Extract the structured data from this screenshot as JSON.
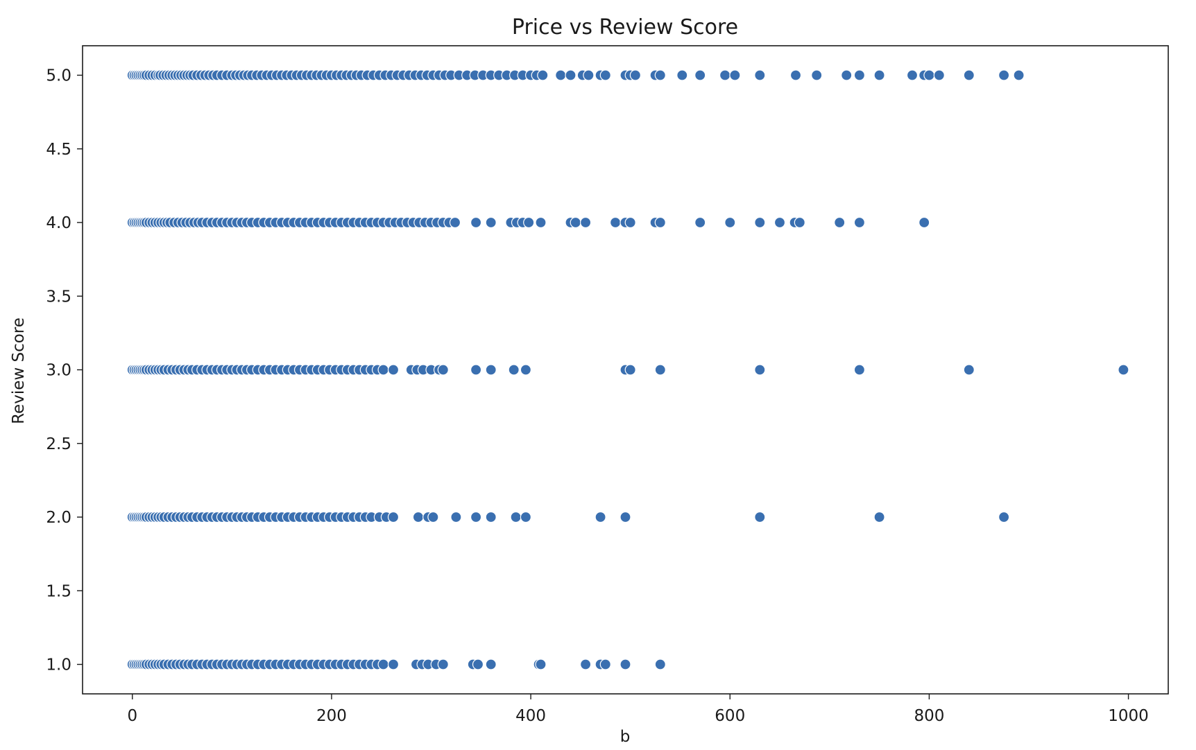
{
  "chart_data": {
    "type": "scatter",
    "title": "Price vs Review Score",
    "xlabel": "b",
    "ylabel": "Review Score",
    "xlim": [
      -50,
      1040
    ],
    "ylim": [
      0.8,
      5.2
    ],
    "xticks": [
      0,
      200,
      400,
      600,
      800,
      1000
    ],
    "yticks": [
      1.0,
      1.5,
      2.0,
      2.5,
      3.0,
      3.5,
      4.0,
      4.5,
      5.0
    ],
    "grid": false,
    "legend": "none",
    "marker_color": "#3a6fb0",
    "marker_edge_color": "#ffffff",
    "series": [
      {
        "y": 5.0,
        "x": [
          0,
          2,
          4,
          6,
          8,
          10,
          12,
          14,
          17,
          20,
          23,
          26,
          28,
          31,
          34,
          37,
          40,
          43,
          46,
          49,
          52,
          55,
          58,
          61,
          65,
          69,
          73,
          77,
          81,
          85,
          90,
          95,
          100,
          104,
          108,
          112,
          116,
          120,
          125,
          130,
          135,
          140,
          145,
          150,
          155,
          160,
          165,
          170,
          175,
          180,
          185,
          190,
          195,
          200,
          205,
          210,
          215,
          220,
          225,
          230,
          236,
          242,
          248,
          254,
          260,
          266,
          272,
          278,
          284,
          290,
          296,
          302,
          308,
          314,
          320,
          328,
          336,
          344,
          352,
          360,
          368,
          376,
          384,
          392,
          400,
          406,
          412,
          430,
          440,
          452,
          458,
          470,
          475,
          495,
          500,
          505,
          525,
          530,
          552,
          570,
          595,
          605,
          630,
          666,
          687,
          717,
          730,
          750,
          783,
          795,
          800,
          810,
          840,
          875,
          890
        ]
      },
      {
        "y": 4.0,
        "x": [
          0,
          2,
          4,
          6,
          8,
          10,
          12,
          14,
          17,
          20,
          23,
          26,
          29,
          32,
          35,
          38,
          42,
          46,
          50,
          54,
          58,
          62,
          66,
          70,
          75,
          80,
          85,
          90,
          95,
          100,
          105,
          110,
          115,
          120,
          126,
          132,
          138,
          144,
          150,
          156,
          162,
          168,
          174,
          180,
          186,
          192,
          198,
          204,
          210,
          216,
          222,
          228,
          234,
          240,
          246,
          252,
          258,
          264,
          270,
          276,
          282,
          288,
          294,
          300,
          306,
          312,
          318,
          324,
          345,
          360,
          380,
          386,
          392,
          398,
          410,
          440,
          445,
          455,
          485,
          495,
          500,
          525,
          530,
          570,
          600,
          630,
          650,
          665,
          670,
          710,
          730,
          795
        ]
      },
      {
        "y": 3.0,
        "x": [
          0,
          2,
          4,
          6,
          8,
          10,
          12,
          14,
          17,
          20,
          23,
          26,
          29,
          32,
          36,
          40,
          44,
          48,
          52,
          56,
          60,
          65,
          70,
          75,
          80,
          85,
          90,
          95,
          100,
          105,
          110,
          115,
          120,
          126,
          132,
          138,
          144,
          150,
          156,
          162,
          168,
          174,
          180,
          186,
          192,
          198,
          204,
          210,
          216,
          222,
          228,
          234,
          240,
          246,
          252,
          262,
          280,
          286,
          292,
          300,
          308,
          312,
          345,
          360,
          383,
          395,
          495,
          500,
          530,
          630,
          730,
          840,
          995
        ]
      },
      {
        "y": 2.0,
        "x": [
          0,
          2,
          4,
          6,
          8,
          10,
          12,
          14,
          17,
          20,
          23,
          26,
          29,
          32,
          36,
          40,
          44,
          48,
          52,
          56,
          60,
          65,
          70,
          75,
          80,
          85,
          90,
          95,
          100,
          105,
          110,
          115,
          120,
          126,
          132,
          138,
          144,
          150,
          156,
          162,
          168,
          174,
          180,
          186,
          192,
          198,
          204,
          210,
          216,
          222,
          228,
          234,
          240,
          248,
          255,
          262,
          287,
          297,
          302,
          325,
          345,
          360,
          385,
          395,
          470,
          495,
          630,
          750,
          875
        ]
      },
      {
        "y": 1.0,
        "x": [
          0,
          2,
          4,
          6,
          8,
          10,
          12,
          14,
          17,
          20,
          23,
          26,
          29,
          32,
          36,
          40,
          44,
          48,
          52,
          56,
          60,
          65,
          70,
          75,
          80,
          85,
          90,
          95,
          100,
          105,
          110,
          115,
          120,
          126,
          132,
          138,
          144,
          150,
          156,
          162,
          168,
          174,
          180,
          186,
          192,
          198,
          204,
          210,
          216,
          222,
          228,
          234,
          240,
          246,
          252,
          262,
          285,
          291,
          297,
          305,
          312,
          342,
          347,
          360,
          408,
          410,
          455,
          470,
          475,
          495,
          530
        ]
      }
    ]
  }
}
